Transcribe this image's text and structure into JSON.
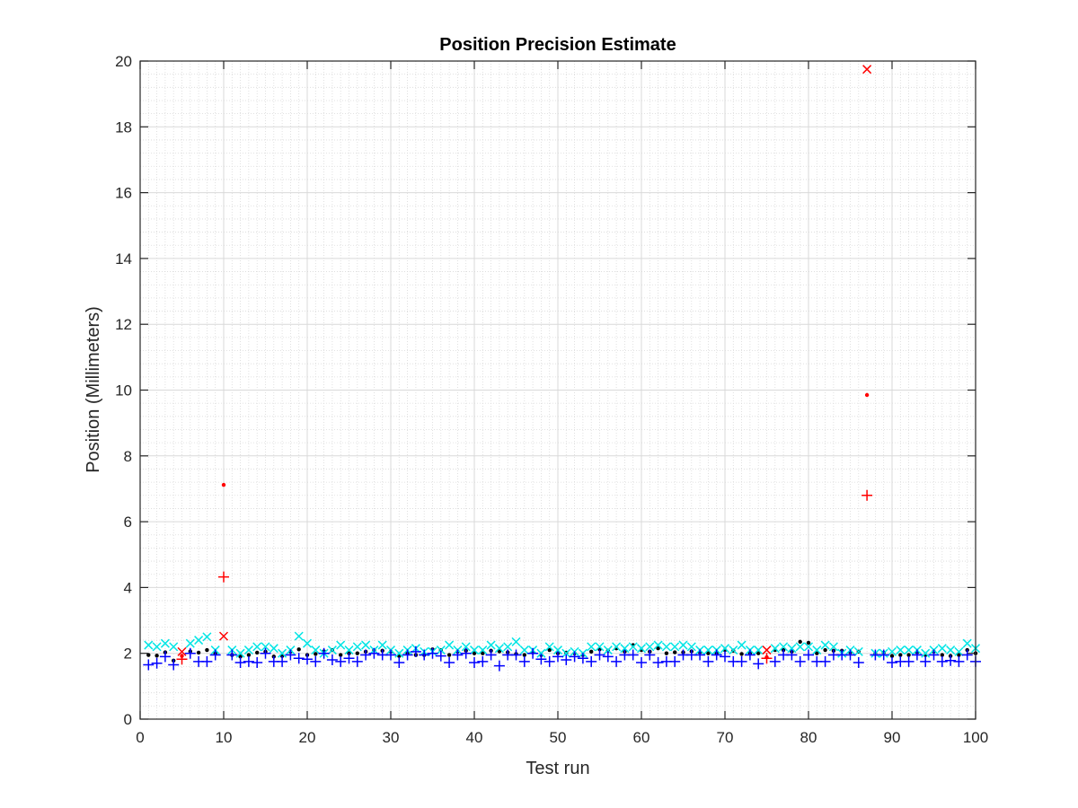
{
  "chart_data": {
    "type": "scatter",
    "title": "Position Precision Estimate",
    "xlabel": "Test run",
    "ylabel": "Position (Millimeters)",
    "xlim": [
      0,
      100
    ],
    "ylim": [
      0,
      20
    ],
    "x_ticks": [
      0,
      10,
      20,
      30,
      40,
      50,
      60,
      70,
      80,
      90,
      100
    ],
    "y_ticks": [
      0,
      2,
      4,
      6,
      8,
      10,
      12,
      14,
      16,
      18,
      20
    ],
    "grid": "major and minor",
    "legend": "none",
    "colors": {
      "mean_normal": "#000000",
      "upper_normal": "#00e5e5",
      "lower_normal": "#0000ff",
      "outlier": "#ff0000",
      "grid": "#d9d9d9",
      "axis": "#262626"
    },
    "series": [
      {
        "marker": "dot",
        "x": [
          1,
          2,
          3,
          4,
          5,
          6,
          7,
          8,
          9,
          10,
          11,
          12,
          13,
          14,
          15,
          16,
          17,
          18,
          19,
          20,
          21,
          22,
          23,
          24,
          25,
          26,
          27,
          28,
          29,
          30,
          31,
          32,
          33,
          34,
          35,
          36,
          37,
          38,
          39,
          40,
          41,
          42,
          43,
          44,
          45,
          46,
          47,
          48,
          49,
          50,
          51,
          52,
          53,
          54,
          55,
          56,
          57,
          58,
          59,
          60,
          61,
          62,
          63,
          64,
          65,
          66,
          67,
          68,
          69,
          70,
          71,
          72,
          73,
          74,
          75,
          76,
          77,
          78,
          79,
          80,
          81,
          82,
          83,
          84,
          85,
          86,
          87,
          88,
          89,
          90,
          91,
          92,
          93,
          94,
          95,
          96,
          97,
          98,
          99,
          100
        ],
        "y": [
          1.95,
          1.93,
          2.03,
          1.78,
          1.92,
          2.06,
          2.02,
          2.1,
          2.0,
          7.12,
          1.95,
          1.9,
          1.95,
          2.02,
          2.05,
          1.9,
          1.92,
          2.05,
          2.12,
          1.95,
          1.98,
          2.06,
          2.1,
          1.95,
          2.0,
          2.0,
          2.05,
          2.1,
          2.08,
          2.05,
          1.92,
          2.0,
          1.95,
          1.95,
          2.12,
          2.1,
          1.95,
          2.05,
          2.08,
          2.0,
          2.0,
          2.08,
          2.06,
          2.03,
          1.98,
          1.95,
          2.02,
          1.95,
          2.1,
          2.0,
          2.02,
          2.0,
          1.95,
          2.05,
          2.12,
          2.08,
          2.15,
          2.05,
          2.25,
          2.1,
          2.05,
          2.15,
          2.0,
          2.03,
          2.03,
          2.06,
          2.03,
          2.0,
          2.0,
          2.1,
          2.08,
          1.98,
          2.0,
          2.0,
          1.88,
          2.1,
          2.1,
          2.05,
          2.35,
          2.32,
          2.0,
          2.1,
          2.08,
          2.08,
          2.03,
          2.05,
          9.85,
          1.98,
          2.02,
          1.92,
          1.95,
          1.95,
          2.03,
          1.95,
          2.05,
          1.95,
          1.92,
          1.95,
          2.1,
          2.0
        ],
        "outliers": [
          5,
          10,
          75,
          87
        ]
      },
      {
        "marker": "x",
        "x": [
          1,
          2,
          3,
          4,
          5,
          6,
          7,
          8,
          9,
          10,
          11,
          12,
          13,
          14,
          15,
          16,
          17,
          18,
          19,
          20,
          21,
          22,
          23,
          24,
          25,
          26,
          27,
          28,
          29,
          30,
          31,
          32,
          33,
          34,
          35,
          36,
          37,
          38,
          39,
          40,
          41,
          42,
          43,
          44,
          45,
          46,
          47,
          48,
          49,
          50,
          51,
          52,
          53,
          54,
          55,
          56,
          57,
          58,
          59,
          60,
          61,
          62,
          63,
          64,
          65,
          66,
          67,
          68,
          69,
          70,
          71,
          72,
          73,
          74,
          75,
          76,
          77,
          78,
          79,
          80,
          81,
          82,
          83,
          84,
          85,
          86,
          87,
          88,
          89,
          90,
          91,
          92,
          93,
          94,
          95,
          96,
          97,
          98,
          99,
          100
        ],
        "y": [
          2.25,
          2.2,
          2.3,
          2.2,
          2.05,
          2.3,
          2.4,
          2.5,
          2.1,
          2.52,
          2.1,
          2.0,
          2.1,
          2.2,
          2.2,
          2.15,
          2.0,
          2.1,
          2.52,
          2.3,
          2.1,
          2.0,
          2.1,
          2.25,
          2.1,
          2.2,
          2.25,
          2.1,
          2.25,
          2.1,
          2.0,
          2.1,
          2.15,
          2.05,
          2.05,
          2.1,
          2.25,
          2.1,
          2.2,
          2.1,
          2.1,
          2.25,
          2.15,
          2.2,
          2.35,
          2.1,
          2.1,
          2.0,
          2.2,
          2.1,
          2.0,
          2.05,
          2.0,
          2.2,
          2.2,
          2.1,
          2.2,
          2.15,
          2.2,
          2.15,
          2.2,
          2.25,
          2.2,
          2.2,
          2.25,
          2.2,
          2.1,
          2.1,
          2.1,
          2.15,
          2.1,
          2.25,
          2.1,
          2.1,
          2.1,
          2.15,
          2.2,
          2.15,
          2.2,
          2.2,
          2.1,
          2.25,
          2.2,
          2.0,
          2.1,
          2.05,
          19.75,
          2.0,
          2.0,
          2.05,
          2.1,
          2.1,
          2.1,
          2.0,
          2.1,
          2.15,
          2.1,
          2.05,
          2.3,
          2.15
        ],
        "outliers": [
          5,
          10,
          75,
          87
        ]
      },
      {
        "marker": "plus",
        "x": [
          1,
          2,
          3,
          4,
          5,
          6,
          7,
          8,
          9,
          10,
          11,
          12,
          13,
          14,
          15,
          16,
          17,
          18,
          19,
          20,
          21,
          22,
          23,
          24,
          25,
          26,
          27,
          28,
          29,
          30,
          31,
          32,
          33,
          34,
          35,
          36,
          37,
          38,
          39,
          40,
          41,
          42,
          43,
          44,
          45,
          46,
          47,
          48,
          49,
          50,
          51,
          52,
          53,
          54,
          55,
          56,
          57,
          58,
          59,
          60,
          61,
          62,
          63,
          64,
          65,
          66,
          67,
          68,
          69,
          70,
          71,
          72,
          73,
          74,
          75,
          76,
          77,
          78,
          79,
          80,
          81,
          82,
          83,
          84,
          85,
          86,
          87,
          88,
          89,
          90,
          91,
          92,
          93,
          94,
          95,
          96,
          97,
          98,
          99,
          100
        ],
        "y": [
          1.65,
          1.7,
          1.9,
          1.65,
          1.82,
          2.0,
          1.75,
          1.75,
          1.95,
          4.32,
          1.95,
          1.72,
          1.75,
          1.72,
          2.0,
          1.75,
          1.75,
          1.95,
          1.85,
          1.82,
          1.75,
          2.0,
          1.8,
          1.75,
          1.85,
          1.75,
          1.95,
          2.0,
          1.95,
          1.95,
          1.72,
          1.95,
          2.05,
          1.95,
          2.0,
          1.92,
          1.72,
          1.95,
          2.0,
          1.72,
          1.75,
          1.95,
          1.62,
          1.95,
          1.95,
          1.75,
          2.0,
          1.82,
          1.75,
          1.9,
          1.8,
          1.9,
          1.85,
          1.75,
          1.95,
          1.9,
          1.75,
          1.95,
          1.95,
          1.72,
          1.95,
          1.72,
          1.75,
          1.75,
          1.95,
          1.95,
          1.95,
          1.75,
          1.95,
          1.9,
          1.75,
          1.75,
          1.95,
          1.68,
          1.85,
          1.75,
          1.95,
          1.95,
          1.75,
          1.95,
          1.75,
          1.75,
          1.95,
          1.95,
          1.95,
          1.72,
          6.8,
          1.95,
          1.95,
          1.72,
          1.75,
          1.75,
          1.95,
          1.75,
          1.95,
          1.75,
          1.78,
          1.75,
          1.95,
          1.75
        ],
        "outliers": [
          5,
          10,
          75,
          87
        ]
      }
    ]
  }
}
